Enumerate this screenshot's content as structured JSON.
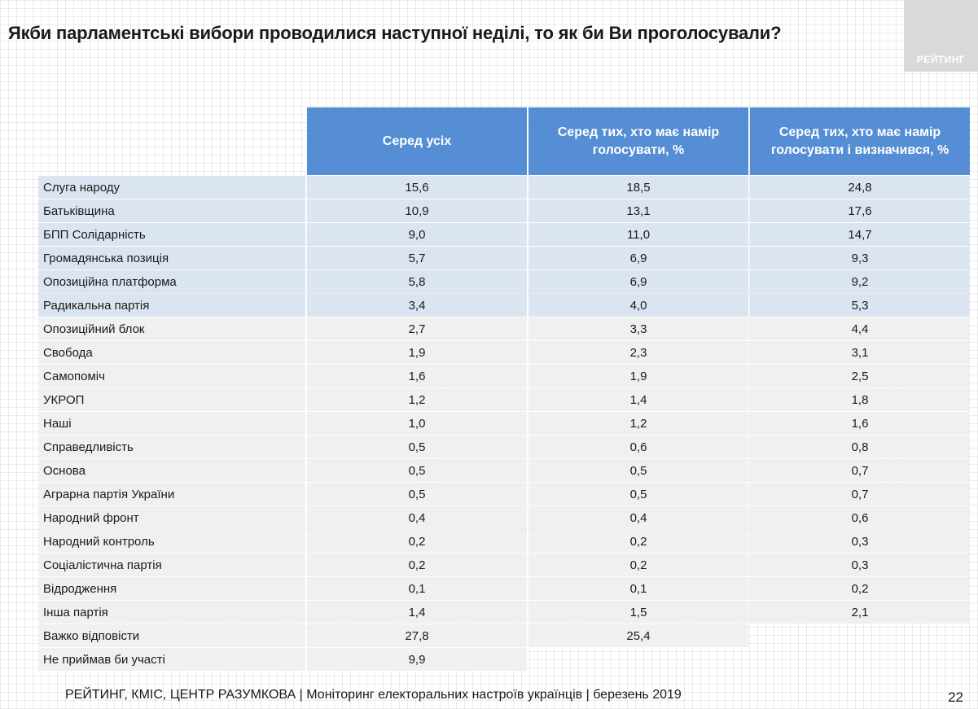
{
  "title": "Якби парламентські вибори проводилися наступної неділі, то як би Ви проголосували?",
  "logo_text": "РЕЙТИНГ",
  "columns": [
    "Серед усіх",
    "Серед тих, хто має намір голосувати, %",
    "Серед тих, хто має намір голосувати і визначився, %"
  ],
  "rows": [
    {
      "party": "Слуга народу",
      "all": "15,6",
      "intend": "18,5",
      "decided": "24,8"
    },
    {
      "party": "Батьківщина",
      "all": "10,9",
      "intend": "13,1",
      "decided": "17,6"
    },
    {
      "party": "БПП Солідарність",
      "all": "9,0",
      "intend": "11,0",
      "decided": "14,7"
    },
    {
      "party": "Громадянська позиція",
      "all": "5,7",
      "intend": "6,9",
      "decided": "9,3"
    },
    {
      "party": "Опозиційна платформа",
      "all": "5,8",
      "intend": "6,9",
      "decided": "9,2"
    },
    {
      "party": "Радикальна партія",
      "all": "3,4",
      "intend": "4,0",
      "decided": "5,3"
    },
    {
      "party": "Опозиційний блок",
      "all": "2,7",
      "intend": "3,3",
      "decided": "4,4"
    },
    {
      "party": "Свобода",
      "all": "1,9",
      "intend": "2,3",
      "decided": "3,1"
    },
    {
      "party": "Самопоміч",
      "all": "1,6",
      "intend": "1,9",
      "decided": "2,5"
    },
    {
      "party": "УКРОП",
      "all": "1,2",
      "intend": "1,4",
      "decided": "1,8"
    },
    {
      "party": "Наші",
      "all": "1,0",
      "intend": "1,2",
      "decided": "1,6"
    },
    {
      "party": "Справедливість",
      "all": "0,5",
      "intend": "0,6",
      "decided": "0,8"
    },
    {
      "party": "Основа",
      "all": "0,5",
      "intend": "0,5",
      "decided": "0,7"
    },
    {
      "party": "Аграрна партія України",
      "all": "0,5",
      "intend": "0,5",
      "decided": "0,7"
    },
    {
      "party": "Народний фронт",
      "all": "0,4",
      "intend": "0,4",
      "decided": "0,6"
    },
    {
      "party": "Народний контроль",
      "all": "0,2",
      "intend": "0,2",
      "decided": "0,3"
    },
    {
      "party": "Соціалістична партія",
      "all": "0,2",
      "intend": "0,2",
      "decided": "0,3"
    },
    {
      "party": "Відродження",
      "all": "0,1",
      "intend": "0,1",
      "decided": "0,2"
    },
    {
      "party": "Інша партія",
      "all": "1,4",
      "intend": "1,5",
      "decided": "2,1"
    },
    {
      "party": "Важко відповісти",
      "all": "27,8",
      "intend": "25,4",
      "decided": null
    },
    {
      "party": "Не приймав би участі",
      "all": "9,9",
      "intend": null,
      "decided": null
    }
  ],
  "footer": {
    "source": "РЕЙТИНГ, КМІС, ЦЕНТР РАЗУМКОВА  | Моніторинг електоральних настроїв українців | березень 2019",
    "page_number": "22"
  },
  "colors": {
    "header_blue": "#558ed5",
    "highlight_row": "#dbe5f1",
    "plain_row": "#f0f0f0",
    "logo_gray": "#d9d9d9"
  }
}
